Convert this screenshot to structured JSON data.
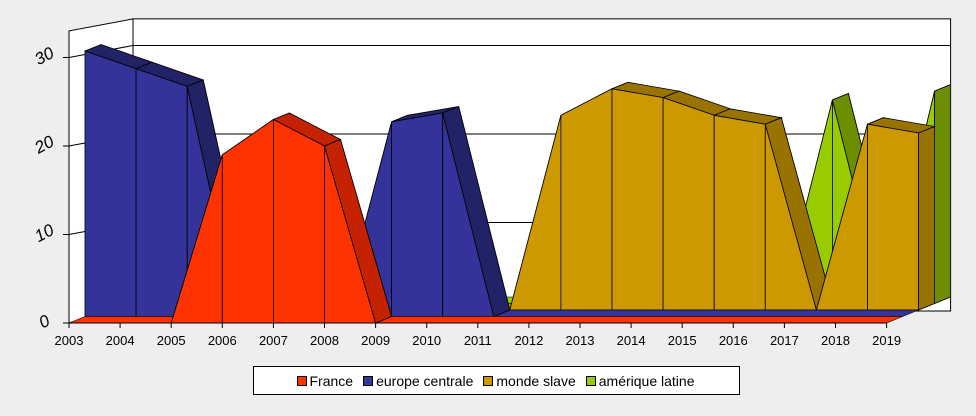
{
  "chart_data": {
    "type": "area",
    "title": "",
    "xlabel": "",
    "ylabel": "",
    "categories": [
      "2003",
      "2004",
      "2005",
      "2006",
      "2007",
      "2008",
      "2009",
      "2010",
      "2011",
      "2012",
      "2013",
      "2014",
      "2015",
      "2016",
      "2017",
      "2018",
      "2019"
    ],
    "ylim": [
      0,
      30
    ],
    "yticks": [
      "0",
      "10",
      "20",
      "30"
    ],
    "grid": true,
    "legend_position": "bottom",
    "series": [
      {
        "name": "France",
        "color": "#ff3300",
        "side": "#c42200",
        "values": [
          0,
          0,
          0,
          19,
          23,
          20,
          0,
          0,
          0,
          0,
          0,
          0,
          0,
          0,
          0,
          0,
          0
        ]
      },
      {
        "name": "europe centrale",
        "color": "#333399",
        "side": "#222266",
        "values": [
          30,
          28,
          26,
          0,
          0,
          0,
          22,
          23,
          0,
          0,
          0,
          0,
          0,
          0,
          0,
          0,
          0
        ]
      },
      {
        "name": "monde slave",
        "color": "#cc9900",
        "side": "#997300",
        "values": [
          0,
          0,
          0,
          0,
          0,
          0,
          0,
          0,
          0,
          22,
          25,
          24,
          22,
          21,
          0,
          21,
          20
        ]
      },
      {
        "name": "amérique latine",
        "color": "#99cc00",
        "side": "#6b8f00",
        "values": [
          0,
          0,
          0,
          0,
          0,
          0,
          0,
          0,
          0,
          0,
          0,
          0,
          0,
          0,
          23,
          0,
          24
        ]
      }
    ]
  }
}
